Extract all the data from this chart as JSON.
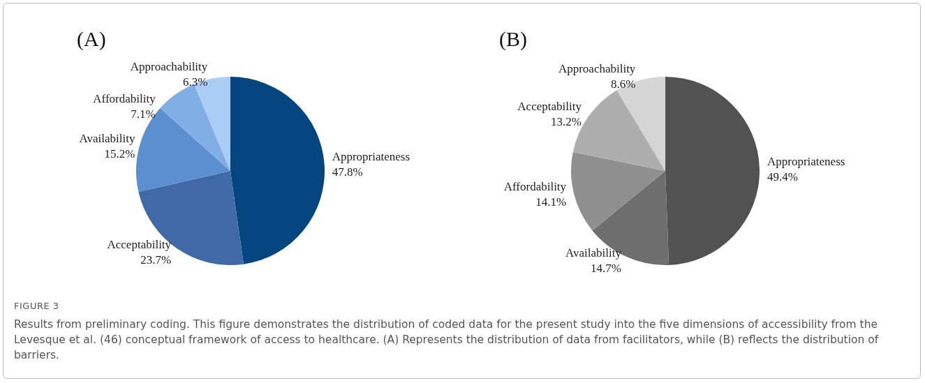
{
  "chart_data": [
    {
      "type": "pie",
      "title": "(A)",
      "categories": [
        "Appropriateness",
        "Acceptability",
        "Availability",
        "Affordability",
        "Approachability"
      ],
      "values": [
        47.8,
        23.7,
        15.2,
        7.1,
        6.3
      ],
      "value_labels": [
        "47.8%",
        "23.7%",
        "15.2%",
        "7.1%",
        "6.3%"
      ],
      "colors": [
        "#03457f",
        "#3f6aa5",
        "#5b8fd0",
        "#82aee6",
        "#aacdf5"
      ],
      "annotations": [
        "FIGURE 3",
        "Results from preliminary coding. This figure demonstrates the distribution of coded data for the present study into the five dimensions of accessibility from the Levesque et al. (46) conceptual framework of access to healthcare. (A) Represents the distribution of data from facilitators, while (B) reflects the distribution of barriers."
      ]
    },
    {
      "type": "pie",
      "title": "(B)",
      "categories": [
        "Appropriateness",
        "Availability",
        "Affordability",
        "Acceptability",
        "Approachability"
      ],
      "values": [
        49.4,
        14.7,
        14.1,
        13.2,
        8.6
      ],
      "value_labels": [
        "49.4%",
        "14.7%",
        "14.1%",
        "13.2%",
        "8.6%"
      ],
      "colors": [
        "#525252",
        "#6e6e6e",
        "#8f8f8f",
        "#aeaeae",
        "#d6d6d6"
      ]
    }
  ]
}
